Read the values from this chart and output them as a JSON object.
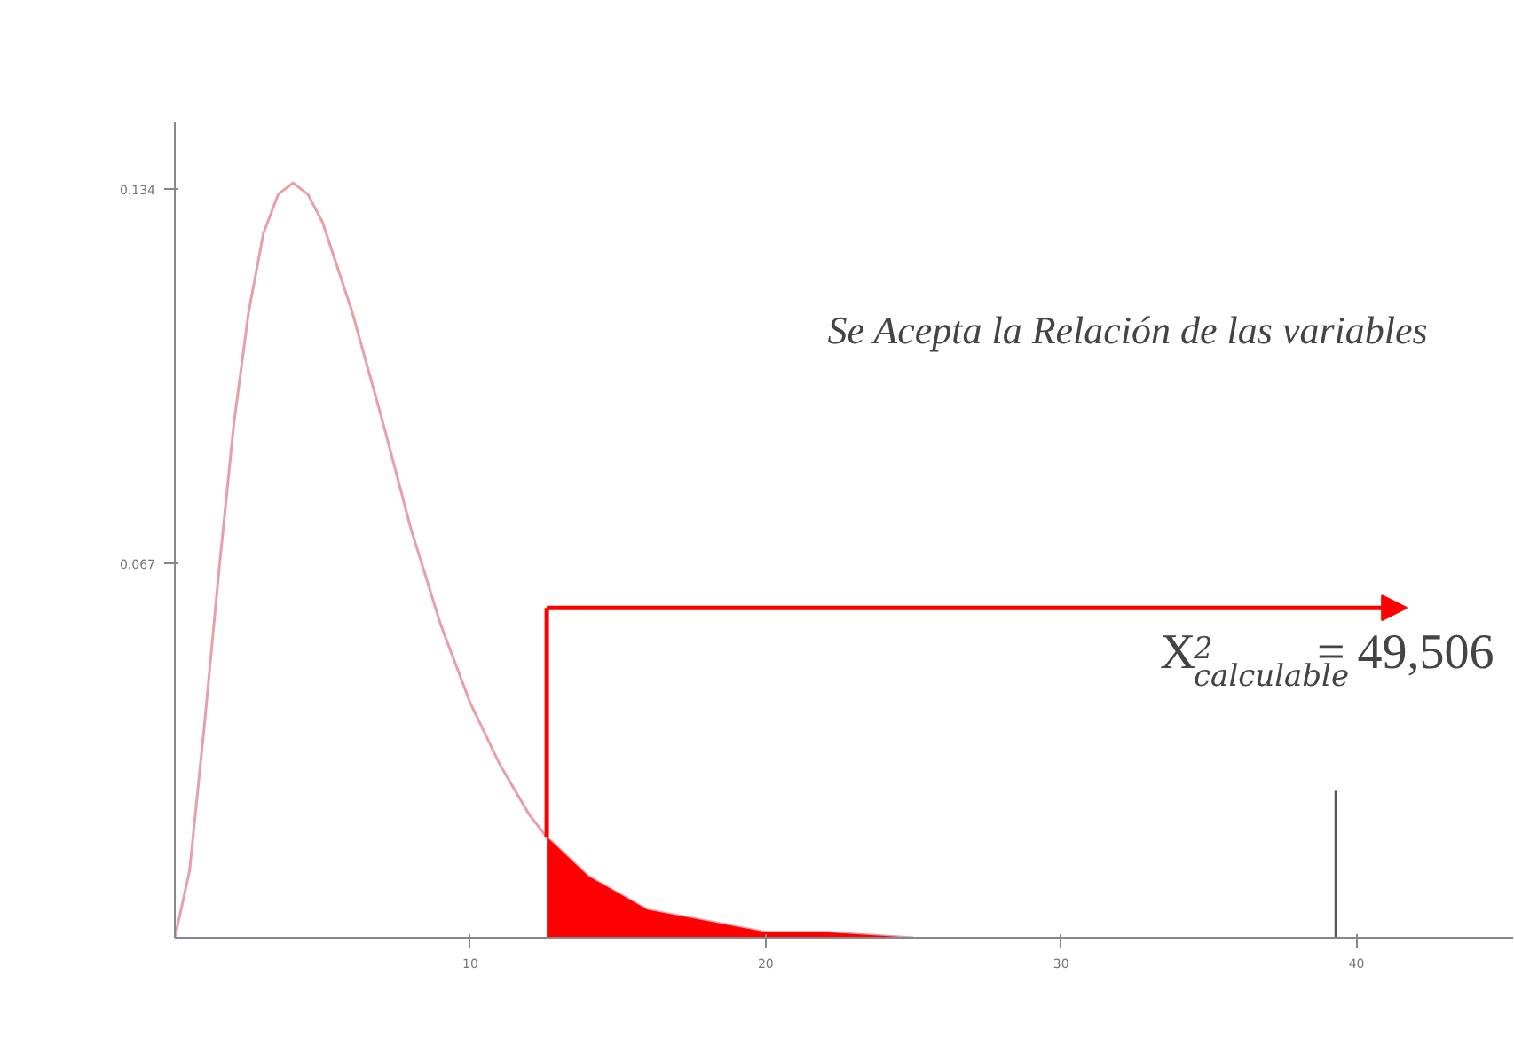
{
  "chart_data": {
    "type": "line",
    "series": [
      {
        "color": "#e8a0a8",
        "x": [
          0,
          0.5,
          1,
          1.5,
          2,
          2.5,
          3,
          3.5,
          4,
          4.5,
          5,
          6,
          7,
          8,
          9,
          10,
          11,
          12,
          12.59,
          14,
          16,
          18,
          20,
          22,
          25
        ],
        "values": [
          0,
          0.012,
          0.038,
          0.066,
          0.092,
          0.112,
          0.126,
          0.133,
          0.135,
          0.133,
          0.128,
          0.112,
          0.093,
          0.073,
          0.056,
          0.042,
          0.031,
          0.022,
          0.018,
          0.011,
          0.005,
          0.003,
          0.001,
          0.001,
          0
        ]
      },
      {
        "type": "area",
        "color": "#ff0000",
        "x": [
          12.59,
          13,
          14,
          15,
          16,
          18,
          20,
          22,
          25
        ],
        "values": [
          0.018,
          0.016,
          0.011,
          0.008,
          0.005,
          0.003,
          0.001,
          0.001,
          0
        ]
      }
    ],
    "xlim": [
      0,
      45.3
    ],
    "ylim": [
      0,
      0.146
    ],
    "xticks": [
      10,
      20,
      30,
      40
    ],
    "yticks": [
      0.067,
      0.134
    ],
    "grid": false,
    "ref_lines": [
      {
        "axis": "x",
        "value": 39.3,
        "color": "#555555"
      },
      {
        "axis": "x",
        "value": 12.59,
        "color": "#ff0000"
      }
    ],
    "annotations": [
      "Se Acepta la Relación de las variables",
      "X$^{2}$$_{calculable}$ = 49,506"
    ]
  }
}
